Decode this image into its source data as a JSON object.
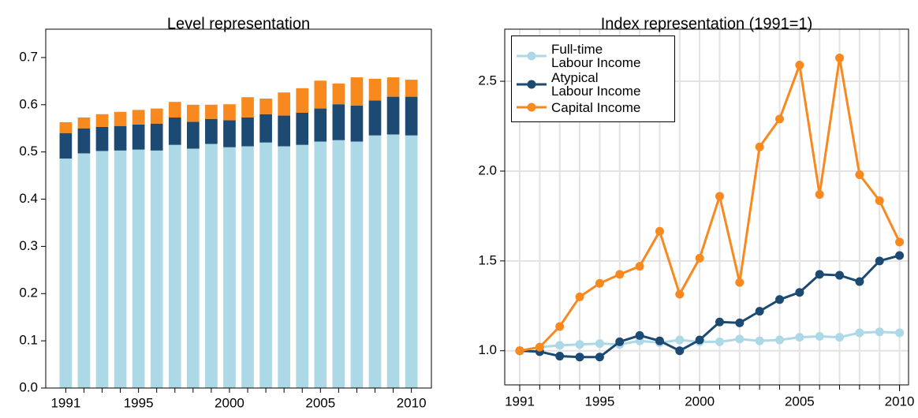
{
  "chart_data": [
    {
      "type": "bar",
      "stacked": true,
      "title": "Level representation",
      "categories": [
        1991,
        null,
        null,
        null,
        1995,
        null,
        null,
        null,
        null,
        2000,
        null,
        null,
        null,
        null,
        2005,
        null,
        null,
        null,
        null,
        2010
      ],
      "series": [
        {
          "color": "#add8e6",
          "values": [
            0.486,
            0.497,
            0.502,
            0.503,
            0.505,
            0.503,
            0.515,
            0.507,
            0.517,
            0.51,
            0.512,
            0.52,
            0.512,
            0.515,
            0.522,
            0.525,
            0.522,
            0.535,
            0.537,
            0.535
          ]
        },
        {
          "color": "#1c4a72",
          "values": [
            0.054,
            0.053,
            0.051,
            0.052,
            0.053,
            0.057,
            0.058,
            0.057,
            0.053,
            0.057,
            0.061,
            0.06,
            0.065,
            0.068,
            0.07,
            0.076,
            0.076,
            0.074,
            0.08,
            0.082
          ]
        },
        {
          "color": "#f7891f",
          "values": [
            0.023,
            0.023,
            0.027,
            0.03,
            0.031,
            0.032,
            0.033,
            0.036,
            0.03,
            0.034,
            0.043,
            0.033,
            0.049,
            0.052,
            0.059,
            0.044,
            0.06,
            0.046,
            0.041,
            0.036
          ]
        }
      ],
      "ylim": [
        0,
        0.76
      ],
      "yticks": [
        {
          "value": 0,
          "label": "0.0"
        },
        0.1,
        0.2,
        0.3,
        0.4,
        0.5,
        0.6,
        0.7
      ]
    },
    {
      "type": "line",
      "title": "Index representation (1991=1)",
      "x": [
        1991,
        1992,
        1993,
        1994,
        1995,
        1996,
        1997,
        1998,
        1999,
        2000,
        2001,
        2002,
        2003,
        2004,
        2005,
        2006,
        2007,
        2008,
        2009,
        2010
      ],
      "series": [
        {
          "name": "Full-time\nLabour Income",
          "color": "#add8e6",
          "values": [
            1.0,
            1.02,
            1.03,
            1.035,
            1.04,
            1.035,
            1.055,
            1.045,
            1.06,
            1.05,
            1.05,
            1.065,
            1.055,
            1.06,
            1.075,
            1.08,
            1.075,
            1.1,
            1.105,
            1.1
          ]
        },
        {
          "name": "Atypical\nLabour Income",
          "color": "#1c4a72",
          "values": [
            1.0,
            0.995,
            0.97,
            0.965,
            0.965,
            1.05,
            1.085,
            1.055,
            1.0,
            1.06,
            1.16,
            1.155,
            1.22,
            1.285,
            1.325,
            1.425,
            1.42,
            1.385,
            1.5,
            1.53
          ]
        },
        {
          "name": "Capital Income",
          "color": "#f7891f",
          "values": [
            1.0,
            1.02,
            1.135,
            1.3,
            1.375,
            1.425,
            1.47,
            1.665,
            1.315,
            1.515,
            1.86,
            1.38,
            2.135,
            2.29,
            2.59,
            1.87,
            2.63,
            1.98,
            1.835,
            1.605
          ]
        }
      ],
      "xlim": [
        1990.25,
        2010.45
      ],
      "xticks": [
        1991,
        1995,
        2000,
        2005,
        2010
      ],
      "ylim": [
        0.81,
        2.79
      ],
      "yticks": [
        {
          "value": 1.0,
          "label": "1.0"
        },
        1.5,
        {
          "value": 2.0,
          "label": "2.0"
        },
        2.5
      ],
      "grid": true,
      "legend": "upper left"
    }
  ]
}
